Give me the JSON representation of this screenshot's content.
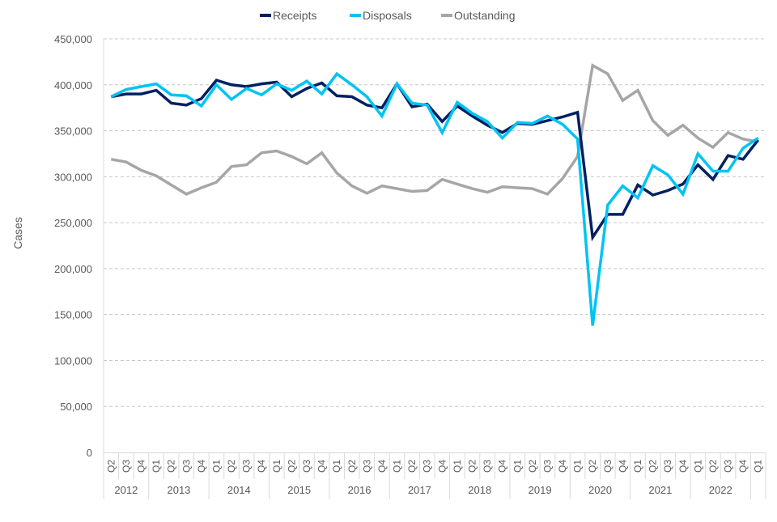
{
  "chart_data": {
    "type": "line",
    "title": "",
    "xlabel": "",
    "ylabel": "Cases",
    "ylim": [
      0,
      450000
    ],
    "yticks": [
      0,
      50000,
      100000,
      150000,
      200000,
      250000,
      300000,
      350000,
      400000,
      450000
    ],
    "ytick_labels": [
      "0",
      "50,000",
      "100,000",
      "150,000",
      "200,000",
      "250,000",
      "300,000",
      "350,000",
      "400,000",
      "450,000"
    ],
    "grid": "horizontal dashed",
    "legend": "top",
    "quarters": [
      "Q2",
      "Q3",
      "Q4",
      "Q1",
      "Q2",
      "Q3",
      "Q4",
      "Q1",
      "Q2",
      "Q3",
      "Q4",
      "Q1",
      "Q2",
      "Q3",
      "Q4",
      "Q1",
      "Q2",
      "Q3",
      "Q4",
      "Q1",
      "Q2",
      "Q3",
      "Q4",
      "Q1",
      "Q2",
      "Q3",
      "Q4",
      "Q1",
      "Q2",
      "Q3",
      "Q4",
      "Q1",
      "Q2",
      "Q3",
      "Q4",
      "Q1",
      "Q2",
      "Q3",
      "Q4",
      "Q1",
      "Q2",
      "Q3",
      "Q4",
      "Q1"
    ],
    "years": [
      {
        "label": "2012",
        "count": 3
      },
      {
        "label": "2013",
        "count": 4
      },
      {
        "label": "2014",
        "count": 4
      },
      {
        "label": "2015",
        "count": 4
      },
      {
        "label": "2016",
        "count": 4
      },
      {
        "label": "2017",
        "count": 4
      },
      {
        "label": "2018",
        "count": 4
      },
      {
        "label": "2019",
        "count": 4
      },
      {
        "label": "2020",
        "count": 4
      },
      {
        "label": "2021",
        "count": 4
      },
      {
        "label": "2022",
        "count": 4
      },
      {
        "label": "",
        "count": 1
      }
    ],
    "series": [
      {
        "name": "Receipts",
        "color": "#002060",
        "values": [
          387000,
          390000,
          390000,
          394000,
          380000,
          378000,
          385000,
          405000,
          400000,
          398000,
          401000,
          403000,
          387000,
          396000,
          402000,
          388000,
          387000,
          378000,
          375000,
          401000,
          376000,
          379000,
          360000,
          377000,
          366000,
          356000,
          348000,
          358000,
          357000,
          361000,
          365000,
          370000,
          234000,
          259000,
          259000,
          291000,
          280000,
          285000,
          292000,
          313000,
          297000,
          323000,
          319000,
          340000
        ]
      },
      {
        "name": "Disposals",
        "color": "#00C3F5",
        "values": [
          387000,
          395000,
          398000,
          401000,
          389000,
          388000,
          377000,
          400000,
          384000,
          396000,
          389000,
          401000,
          394000,
          404000,
          390000,
          412000,
          400000,
          387000,
          366000,
          401000,
          380000,
          378000,
          348000,
          381000,
          369000,
          360000,
          342000,
          359000,
          358000,
          366000,
          357000,
          341000,
          138000,
          269000,
          290000,
          277000,
          312000,
          302000,
          281000,
          325000,
          306000,
          306000,
          331000,
          342000
        ]
      },
      {
        "name": "Outstanding",
        "color": "#A6A6A6",
        "values": [
          319000,
          316000,
          307000,
          301000,
          291000,
          281000,
          288000,
          294000,
          311000,
          313000,
          326000,
          328000,
          322000,
          314000,
          326000,
          304000,
          290000,
          282000,
          290000,
          287000,
          284000,
          285000,
          297000,
          292000,
          287000,
          283000,
          289000,
          288000,
          287000,
          281000,
          298000,
          322000,
          421000,
          412000,
          383000,
          394000,
          361000,
          345000,
          356000,
          342000,
          332000,
          348000,
          341000,
          338000
        ]
      }
    ]
  }
}
